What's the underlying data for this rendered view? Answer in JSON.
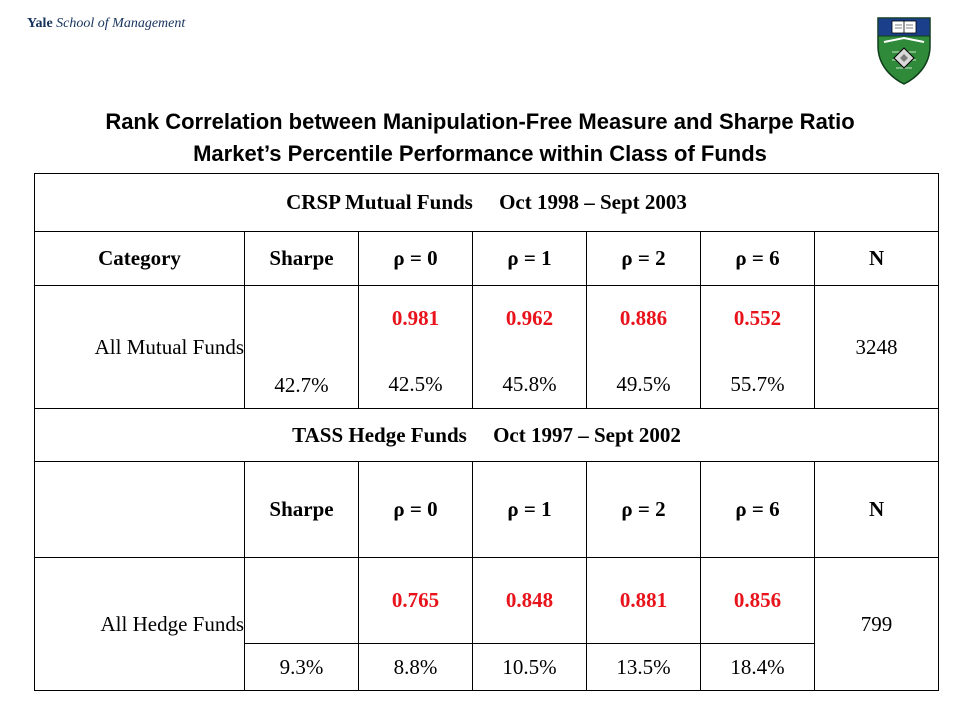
{
  "header": {
    "brand_bold": "Yale",
    "brand_rest": "School of Management"
  },
  "colors": {
    "accent_red": "#e8131b",
    "brand_navy": "#16335c",
    "crest_green": "#2f8a3a"
  },
  "icons": {
    "crest": "yale-som-crest-icon"
  },
  "title": {
    "line1": "Rank Correlation between Manipulation-Free Measure and Sharpe Ratio",
    "line2": "Market’s Percentile Performance within Class of Funds"
  },
  "crsp": {
    "section_label": "CRSP Mutual Funds     Oct 1998 – Sept 2003",
    "headers": [
      "Category",
      "Sharpe",
      "ρ = 0",
      "ρ = 1",
      "ρ = 2",
      "ρ = 6",
      "N"
    ],
    "row": {
      "category": "All Mutual Funds",
      "sharpe_pct": "42.7%",
      "correlations": [
        "0.981",
        "0.962",
        "0.886",
        "0.552"
      ],
      "percentiles": [
        "42.5%",
        "45.8%",
        "49.5%",
        "55.7%"
      ],
      "n": "3248"
    }
  },
  "tass": {
    "section_label": "TASS Hedge Funds     Oct 1997 – Sept 2002",
    "headers": [
      "",
      "Sharpe",
      "ρ = 0",
      "ρ = 1",
      "ρ = 2",
      "ρ = 6",
      "N"
    ],
    "row": {
      "category": "All Hedge Funds",
      "sharpe_pct": "9.3%",
      "correlations": [
        "0.765",
        "0.848",
        "0.881",
        "0.856"
      ],
      "percentiles": [
        "8.8%",
        "10.5%",
        "13.5%",
        "18.4%"
      ],
      "n": "799"
    }
  }
}
